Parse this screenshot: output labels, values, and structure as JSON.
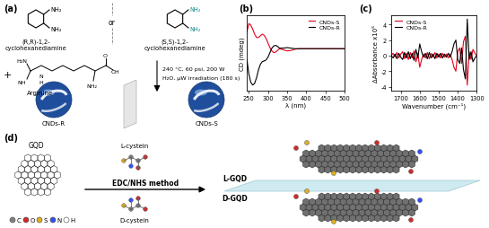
{
  "scheme_a": {
    "label": "(a)",
    "diamines": [
      {
        "name": "(R,R)-1,2-\ncyclohexanediamine",
        "groups": [
          "NH₂",
          "NH₂"
        ]
      },
      {
        "name": "(S,S)-1,2-\ncyclohexanediamine",
        "groups": [
          "NH₂",
          "NH₂"
        ]
      }
    ],
    "separator": "or",
    "plus": "+",
    "arginine": {
      "name": "Arginine",
      "groups": [
        "H₂N",
        "NH",
        "N",
        "H",
        "NH₂",
        "O",
        "OH"
      ]
    },
    "conditions": [
      "240 °C, 60 psi, 200 W",
      "H₂O, µW irradiation (180 s)"
    ],
    "products": [
      "CNDs-R",
      "CNDs-S"
    ]
  },
  "chart_data": [
    {
      "type": "line",
      "title": "(b)",
      "x_label": "λ (nm)",
      "y_label": "CD (mdeg)",
      "x": [
        245,
        250,
        255,
        260,
        265,
        270,
        275,
        280,
        285,
        290,
        295,
        300,
        305,
        310,
        315,
        320,
        325,
        330,
        340,
        350,
        360,
        370,
        380,
        400,
        450,
        500
      ],
      "series": [
        {
          "name": "CNDs-S",
          "color": "#e4001b",
          "values": [
            3.0,
            4.5,
            4.2,
            3.5,
            2.6,
            2.0,
            2.0,
            2.3,
            2.6,
            2.4,
            1.8,
            1.0,
            0.2,
            -0.4,
            -0.7,
            -0.6,
            -0.3,
            0.0,
            -0.2,
            -0.4,
            -0.3,
            -0.1,
            0.0,
            0.0,
            0.0,
            0.0
          ]
        },
        {
          "name": "CNDs-R",
          "color": "#000000",
          "values": [
            -2.0,
            -4.5,
            -6.0,
            -6.5,
            -6.2,
            -5.2,
            -3.8,
            -2.8,
            -2.3,
            -2.2,
            -2.0,
            -1.5,
            -0.7,
            0.1,
            0.5,
            0.6,
            0.4,
            0.1,
            0.1,
            0.2,
            0.1,
            0.0,
            0.0,
            0.0,
            0.0,
            0.0
          ]
        }
      ],
      "xlim": [
        245,
        500
      ],
      "xticks": [
        250,
        300,
        350,
        400,
        450,
        500
      ],
      "ylim": [
        -7.5,
        6
      ],
      "tick_labels": "x",
      "legend": "upper right",
      "grid": false
    },
    {
      "type": "line",
      "title": "(c)",
      "x_label": "Wavenumber (cm⁻¹)",
      "y_label": "ΔAbsorbance x10⁵",
      "x": [
        1750,
        1740,
        1730,
        1720,
        1710,
        1700,
        1690,
        1680,
        1670,
        1660,
        1650,
        1640,
        1630,
        1620,
        1610,
        1600,
        1590,
        1580,
        1570,
        1560,
        1550,
        1540,
        1530,
        1520,
        1510,
        1500,
        1490,
        1480,
        1470,
        1460,
        1450,
        1440,
        1430,
        1420,
        1410,
        1400,
        1390,
        1380,
        1370,
        1360,
        1350,
        1340,
        1330,
        1320,
        1310,
        1300
      ],
      "series": [
        {
          "name": "CNDs-S",
          "color": "#e4001b",
          "values": [
            0.0,
            0.3,
            -0.2,
            0.4,
            -0.3,
            0.2,
            0.5,
            -0.4,
            0.3,
            -0.5,
            0.4,
            -0.3,
            0.6,
            -0.8,
            0.3,
            -1.5,
            -0.5,
            0.2,
            -0.3,
            0.4,
            -0.4,
            0.3,
            -0.2,
            0.4,
            -0.3,
            0.2,
            -0.3,
            0.3,
            -0.2,
            0.2,
            -0.3,
            0.2,
            -0.5,
            -1.5,
            -2.0,
            0.5,
            1.0,
            -1.0,
            1.8,
            2.5,
            -3.8,
            0.5,
            -0.5,
            0.8,
            0.3,
            0.0
          ]
        },
        {
          "name": "CNDs-R",
          "color": "#000000",
          "values": [
            0.0,
            -0.3,
            0.2,
            -0.4,
            0.3,
            -0.2,
            -0.5,
            0.4,
            -0.3,
            0.5,
            -0.4,
            0.3,
            -0.6,
            0.8,
            -0.3,
            1.5,
            0.5,
            -0.2,
            0.3,
            -0.4,
            0.4,
            -0.3,
            0.2,
            -0.4,
            0.3,
            -0.2,
            0.3,
            -0.3,
            0.2,
            -0.2,
            0.3,
            -0.2,
            0.5,
            1.5,
            2.0,
            -0.5,
            -1.0,
            1.0,
            -1.8,
            -3.0,
            4.7,
            -0.5,
            0.5,
            -0.8,
            -0.3,
            0.0
          ]
        }
      ],
      "xlim": [
        1750,
        1300
      ],
      "xticks": [
        1700,
        1600,
        1500,
        1400,
        1300
      ],
      "ylim": [
        -4.5,
        5.2
      ],
      "yticks": [
        -4,
        -2,
        0,
        2,
        4
      ],
      "legend": "upper left",
      "grid": false
    }
  ],
  "scheme_d": {
    "label": "(d)",
    "start": "GQD",
    "reagents": [
      "L-cystein",
      "D-cystein"
    ],
    "method": "EDC/NHS method",
    "products": [
      "L-GQD",
      "D-GQD"
    ],
    "atoms": [
      {
        "label": "C",
        "color": "#808080"
      },
      {
        "label": "O",
        "color": "#d62728"
      },
      {
        "label": "S",
        "color": "#e0b020"
      },
      {
        "label": "N",
        "color": "#3050f8"
      },
      {
        "label": "H",
        "color": "#ffffff"
      }
    ]
  }
}
